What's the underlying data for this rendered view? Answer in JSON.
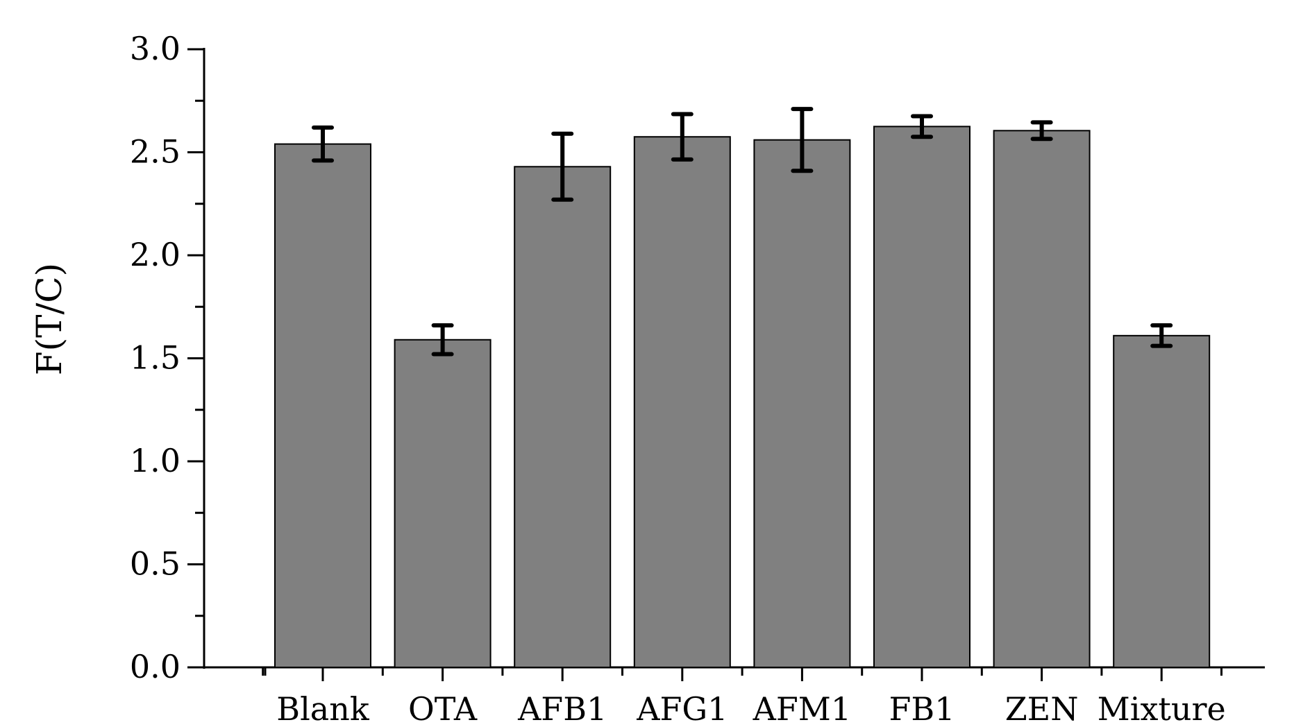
{
  "chart_data": {
    "type": "bar",
    "title": "",
    "xlabel": "",
    "ylabel": "F(T/C)",
    "categories": [
      "Blank",
      "OTA",
      "AFB1",
      "AFG1",
      "AFM1",
      "FB1",
      "ZEN",
      "Mixture"
    ],
    "values": [
      2.54,
      1.59,
      2.43,
      2.575,
      2.56,
      2.625,
      2.605,
      1.61
    ],
    "errors": [
      0.08,
      0.07,
      0.16,
      0.11,
      0.15,
      0.05,
      0.04,
      0.05
    ],
    "ylim": [
      0,
      3.0
    ],
    "yticks": [
      "0.0",
      "0.5",
      "1.0",
      "1.5",
      "2.0",
      "2.5",
      "3.0"
    ],
    "grid": false,
    "legend": "none",
    "colors": {
      "bar_fill": "#808080",
      "bar_stroke": "#000000",
      "error_bar": "#000000",
      "axis": "#000000"
    }
  }
}
